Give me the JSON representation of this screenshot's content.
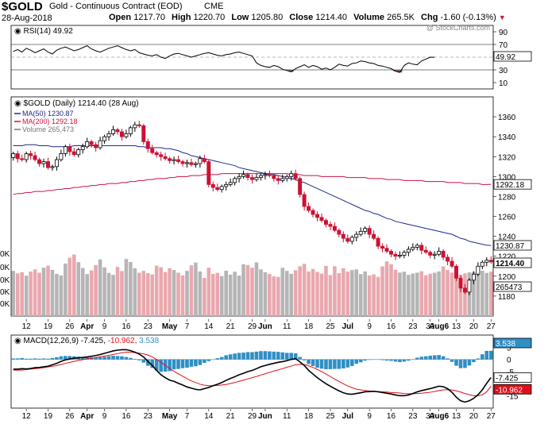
{
  "header": {
    "symbol": "$GOLD",
    "name": "Gold - Continuous Contract (EOD)",
    "exchange": "CME",
    "date": "28-Aug-2018",
    "open_label": "Open",
    "open": "1217.70",
    "high_label": "High",
    "high": "1220.70",
    "low_label": "Low",
    "low": "1205.80",
    "close_label": "Close",
    "close": "1214.40",
    "volume_label": "Volume",
    "volume": "265.5K",
    "chg_label": "Chg",
    "chg": "-1.60 (-0.13%)",
    "watermark": "@ StockCharts.com"
  },
  "colors": {
    "up": "#000000",
    "down": "#cc1133",
    "ma50": "#1c2a8a",
    "ma200": "#cc1144",
    "vol_up": "#b5b5b5",
    "vol_down": "#e8a8ae",
    "macd_hist": "#2f8fc4",
    "macd": "#000000",
    "signal": "#e0101a",
    "rsi_fill": "#7a5a66"
  },
  "chart_data": [
    {
      "type": "line",
      "panel": "rsi",
      "title": "RSI(14) 49.92",
      "last_value": "49.92",
      "ylim": [
        0,
        100
      ],
      "y_ticks": [
        10,
        30,
        50,
        70,
        90
      ],
      "overbought": 70,
      "oversold": 30,
      "values": [
        59,
        62,
        58,
        64,
        61,
        57,
        60,
        63,
        58,
        55,
        61,
        64,
        66,
        63,
        60,
        62,
        65,
        68,
        63,
        60,
        58,
        61,
        64,
        66,
        68,
        65,
        62,
        60,
        62,
        57,
        55,
        53,
        52,
        54,
        50,
        48,
        52,
        55,
        56,
        54,
        52,
        50,
        52,
        54,
        56,
        57,
        55,
        53,
        52,
        54,
        55,
        57,
        58,
        56,
        54,
        52,
        41,
        37,
        35,
        34,
        37,
        35,
        31,
        29,
        27,
        32,
        35,
        38,
        34,
        37,
        35,
        31,
        33,
        30,
        34,
        39,
        37,
        36,
        40,
        41,
        44,
        43,
        41,
        40,
        37,
        36,
        34,
        32,
        28,
        26,
        37,
        41,
        39,
        38,
        44,
        47,
        50,
        49.92
      ]
    },
    {
      "type": "candlestick",
      "panel": "price",
      "title": "$GOLD (Daily) 1214.40 (28 Aug)",
      "legend": [
        {
          "name": "MA(50) 1230.87"
        },
        {
          "name": "MA(200) 1292.18"
        },
        {
          "name": "Volume 265,473"
        }
      ],
      "ylim": [
        1160,
        1380
      ],
      "y_ticks": [
        1180,
        1200,
        1220,
        1240,
        1260,
        1280,
        1300,
        1320,
        1340,
        1360
      ],
      "last_labels": {
        "ma200": "1292.18",
        "ma50": "1230.87",
        "close": "1214.40",
        "volume": "265473"
      },
      "volume_ticks": [
        "0K",
        "0K",
        "0K",
        "0K",
        "0K"
      ],
      "x_labels": [
        {
          "i": 3,
          "label": "12"
        },
        {
          "i": 8,
          "label": "19"
        },
        {
          "i": 13,
          "label": "26"
        },
        {
          "i": 17,
          "label": "Apr",
          "bold": true
        },
        {
          "i": 21,
          "label": "9"
        },
        {
          "i": 26,
          "label": "16"
        },
        {
          "i": 31,
          "label": "23"
        },
        {
          "i": 36,
          "label": "May",
          "bold": true
        },
        {
          "i": 40,
          "label": "7"
        },
        {
          "i": 45,
          "label": "14"
        },
        {
          "i": 50,
          "label": "21"
        },
        {
          "i": 55,
          "label": "29"
        },
        {
          "i": 58,
          "label": "Jun",
          "bold": true
        },
        {
          "i": 63,
          "label": "11"
        },
        {
          "i": 68,
          "label": "18"
        },
        {
          "i": 73,
          "label": "25"
        },
        {
          "i": 77,
          "label": "Jul",
          "bold": true
        },
        {
          "i": 82,
          "label": "9"
        },
        {
          "i": 87,
          "label": "16"
        },
        {
          "i": 92,
          "label": "23"
        },
        {
          "i": 96,
          "label": "30"
        },
        {
          "i": 98,
          "label": "Aug6",
          "bold": true
        },
        {
          "i": 102,
          "label": "13"
        },
        {
          "i": 106,
          "label": "20"
        },
        {
          "i": 110,
          "label": "27"
        }
      ],
      "closes": [
        1323,
        1318,
        1317,
        1323,
        1321,
        1317,
        1313,
        1315,
        1309,
        1310,
        1317,
        1323,
        1330,
        1325,
        1322,
        1327,
        1330,
        1335,
        1332,
        1329,
        1336,
        1340,
        1343,
        1347,
        1345,
        1340,
        1343,
        1349,
        1352,
        1351,
        1335,
        1328,
        1324,
        1322,
        1320,
        1318,
        1316,
        1317,
        1315,
        1313,
        1314,
        1312,
        1313,
        1318,
        1315,
        1292,
        1289,
        1287,
        1290,
        1292,
        1294,
        1298,
        1300,
        1302,
        1299,
        1297,
        1299,
        1301,
        1302,
        1301,
        1298,
        1296,
        1298,
        1300,
        1303,
        1298,
        1282,
        1270,
        1266,
        1262,
        1259,
        1256,
        1252,
        1250,
        1246,
        1242,
        1238,
        1235,
        1239,
        1242,
        1245,
        1248,
        1242,
        1238,
        1230,
        1228,
        1225,
        1222,
        1220,
        1221,
        1224,
        1227,
        1229,
        1231,
        1226,
        1224,
        1221,
        1222,
        1225,
        1219,
        1215,
        1210,
        1198,
        1188,
        1184,
        1196,
        1202,
        1210,
        1214,
        1216,
        1214.4
      ],
      "volumes": [
        270,
        255,
        262,
        241,
        266,
        279,
        259,
        289,
        301,
        276,
        252,
        243,
        314,
        349,
        368,
        322,
        287,
        251,
        273,
        305,
        339,
        291,
        258,
        246,
        294,
        269,
        341,
        323,
        286,
        259,
        270,
        256,
        249,
        301,
        292,
        263,
        286,
        275,
        259,
        243,
        270,
        303,
        320,
        266,
        228,
        289,
        252,
        258,
        239,
        271,
        247,
        265,
        242,
        310,
        305,
        289,
        321,
        279,
        262,
        251,
        237,
        234,
        288,
        270,
        253,
        274,
        298,
        312,
        267,
        281,
        264,
        254,
        300,
        245,
        298,
        257,
        286,
        266,
        275,
        279,
        251,
        267,
        243,
        249,
        234,
        297,
        327,
        310,
        277,
        260,
        265,
        246,
        254,
        259,
        268,
        244,
        253,
        259,
        267,
        297,
        276,
        260,
        232,
        247,
        255,
        261,
        264,
        252,
        271,
        258,
        265
      ],
      "ma50": [
        1331,
        1331,
        1331,
        1332,
        1332,
        1332,
        1331,
        1331,
        1331,
        1330,
        1330,
        1330,
        1330,
        1330,
        1331,
        1331,
        1331,
        1331,
        1331,
        1331,
        1331,
        1331,
        1331,
        1331,
        1331,
        1331,
        1331,
        1331,
        1331,
        1330,
        1330,
        1329,
        1329,
        1329,
        1329,
        1328,
        1328,
        1327,
        1326,
        1324,
        1323,
        1321,
        1320,
        1319,
        1318,
        1317,
        1316,
        1315,
        1314,
        1313,
        1312,
        1311,
        1309,
        1308,
        1307,
        1306,
        1305,
        1304,
        1303,
        1302,
        1302,
        1301,
        1300,
        1299,
        1298,
        1297,
        1295,
        1294,
        1292,
        1290,
        1288,
        1286,
        1284,
        1282,
        1280,
        1278,
        1276,
        1274,
        1272,
        1270,
        1268,
        1266,
        1265,
        1263,
        1262,
        1260,
        1258,
        1257,
        1255,
        1254,
        1253,
        1252,
        1251,
        1250,
        1249,
        1248,
        1247,
        1246,
        1245,
        1244,
        1243,
        1242,
        1240,
        1238,
        1237,
        1235,
        1234,
        1233,
        1232,
        1231,
        1230.87
      ],
      "ma200": [
        1282,
        1283,
        1283,
        1284,
        1284,
        1285,
        1285,
        1285,
        1286,
        1286,
        1287,
        1287,
        1288,
        1288,
        1289,
        1289,
        1290,
        1290,
        1291,
        1291,
        1292,
        1292,
        1293,
        1293,
        1293,
        1294,
        1294,
        1295,
        1295,
        1296,
        1296,
        1297,
        1297,
        1298,
        1298,
        1298,
        1299,
        1299,
        1300,
        1300,
        1300,
        1301,
        1301,
        1301,
        1302,
        1302,
        1302,
        1302,
        1303,
        1303,
        1303,
        1303,
        1303,
        1303,
        1303,
        1303,
        1303,
        1303,
        1303,
        1303,
        1303,
        1303,
        1303,
        1303,
        1302,
        1302,
        1302,
        1301,
        1301,
        1301,
        1301,
        1300,
        1300,
        1300,
        1300,
        1300,
        1300,
        1299,
        1299,
        1299,
        1299,
        1299,
        1298,
        1298,
        1298,
        1298,
        1297,
        1297,
        1297,
        1297,
        1296,
        1296,
        1296,
        1296,
        1296,
        1295,
        1295,
        1295,
        1295,
        1295,
        1294,
        1294,
        1294,
        1294,
        1293,
        1293,
        1293,
        1293,
        1292,
        1292,
        1292.18
      ]
    },
    {
      "type": "bar",
      "panel": "macd",
      "title": "MACD(12,26,9) -7.425, -10.962, 3.538",
      "legend_parts": [
        "MACD(12,26,9) -7.425,",
        "-10.962,",
        "3.538"
      ],
      "last_labels": {
        "hist": "3.538",
        "macd": "-7.425",
        "signal": "-10.962"
      },
      "ylim": [
        -20,
        10
      ],
      "y_ticks": [
        -15,
        -5,
        0,
        5
      ],
      "macd": [
        -4.0,
        -4.0,
        -3.8,
        -3.9,
        -3.7,
        -3.4,
        -3.3,
        -3.0,
        -2.8,
        -2.2,
        -1.6,
        -0.8,
        -0.2,
        0.2,
        0.5,
        0.7,
        0.8,
        1.0,
        1.3,
        1.6,
        2.0,
        2.5,
        3.0,
        3.5,
        3.8,
        4.0,
        4.0,
        3.6,
        3.0,
        2.2,
        1.0,
        -0.8,
        -2.5,
        -4.5,
        -6.3,
        -7.5,
        -8.5,
        -9.0,
        -9.8,
        -10.5,
        -11.3,
        -11.8,
        -12.3,
        -12.5,
        -12.0,
        -11.5,
        -10.8,
        -10.2,
        -9.5,
        -8.6,
        -7.8,
        -7.1,
        -6.3,
        -5.7,
        -5.0,
        -4.5,
        -3.8,
        -3.0,
        -2.5,
        -2.0,
        -1.6,
        -1.2,
        -0.9,
        -0.5,
        0.0,
        0.3,
        -1.0,
        -2.5,
        -4.5,
        -6.0,
        -7.5,
        -8.8,
        -10.0,
        -11.0,
        -12.0,
        -12.9,
        -13.7,
        -14.2,
        -14.3,
        -14.0,
        -13.7,
        -13.3,
        -13.2,
        -13.1,
        -13.3,
        -13.6,
        -13.9,
        -14.2,
        -14.6,
        -14.9,
        -14.9,
        -14.6,
        -14.0,
        -13.3,
        -12.8,
        -12.4,
        -12.0,
        -11.5,
        -11.0,
        -11.2,
        -12.0,
        -13.5,
        -15.5,
        -17.0,
        -17.5,
        -17.0,
        -16.0,
        -14.5,
        -12.5,
        -9.8,
        -7.425
      ],
      "signal": [
        -4.4,
        -4.4,
        -4.4,
        -4.2,
        -4.0,
        -3.8,
        -3.6,
        -3.4,
        -3.1,
        -2.8,
        -2.5,
        -2.1,
        -1.6,
        -1.2,
        -0.8,
        -0.4,
        -0.1,
        0.2,
        0.5,
        0.8,
        1.1,
        1.4,
        1.7,
        2.0,
        2.4,
        2.7,
        3.0,
        3.0,
        2.8,
        2.6,
        2.3,
        1.8,
        1.0,
        0.0,
        -1.2,
        -2.5,
        -3.7,
        -4.9,
        -5.9,
        -6.9,
        -7.9,
        -8.8,
        -9.5,
        -10.2,
        -10.6,
        -10.8,
        -10.8,
        -10.7,
        -10.5,
        -10.3,
        -9.9,
        -9.5,
        -9.0,
        -8.5,
        -8.0,
        -7.5,
        -7.0,
        -6.4,
        -5.9,
        -5.3,
        -4.8,
        -4.3,
        -3.8,
        -3.2,
        -2.7,
        -2.2,
        -2.0,
        -2.1,
        -2.6,
        -3.3,
        -4.1,
        -5.0,
        -6.0,
        -7.0,
        -8.1,
        -9.0,
        -10.0,
        -10.9,
        -11.6,
        -12.2,
        -12.5,
        -12.8,
        -13.0,
        -13.1,
        -13.2,
        -13.3,
        -13.4,
        -13.6,
        -13.7,
        -13.8,
        -14.0,
        -14.1,
        -14.1,
        -14.0,
        -13.9,
        -13.7,
        -13.5,
        -13.2,
        -12.8,
        -12.5,
        -12.4,
        -12.5,
        -12.9,
        -13.4,
        -14.0,
        -14.5,
        -14.9,
        -14.9,
        -14.6,
        -13.3,
        -10.962
      ]
    }
  ]
}
